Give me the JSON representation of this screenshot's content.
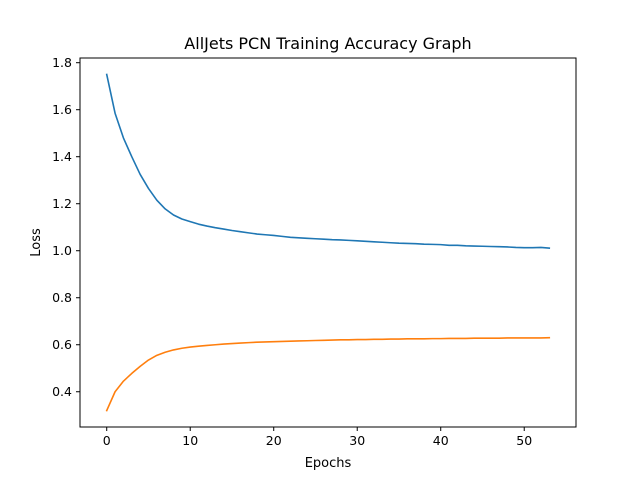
{
  "chart_data": {
    "type": "line",
    "title": "AllJets PCN Training Accuracy Graph",
    "xlabel": "Epochs",
    "ylabel": "Loss",
    "xlim": [
      -3.2,
      56.2
    ],
    "ylim": [
      0.25,
      1.82
    ],
    "xticks": [
      0,
      10,
      20,
      30,
      40,
      50
    ],
    "yticks": [
      0.4,
      0.6,
      0.8,
      1.0,
      1.2,
      1.4,
      1.6,
      1.8
    ],
    "xtick_labels": [
      "0",
      "10",
      "20",
      "30",
      "40",
      "50"
    ],
    "ytick_labels": [
      "0.4",
      "0.6",
      "0.8",
      "1.0",
      "1.2",
      "1.4",
      "1.6",
      "1.8"
    ],
    "grid": false,
    "legend": "none",
    "x": [
      0,
      1,
      2,
      3,
      4,
      5,
      6,
      7,
      8,
      9,
      10,
      11,
      12,
      13,
      14,
      15,
      16,
      17,
      18,
      19,
      20,
      21,
      22,
      23,
      24,
      25,
      26,
      27,
      28,
      29,
      30,
      31,
      32,
      33,
      34,
      35,
      36,
      37,
      38,
      39,
      40,
      41,
      42,
      43,
      44,
      45,
      46,
      47,
      48,
      49,
      50,
      51,
      52,
      53
    ],
    "series": [
      {
        "color": "#1f77b4",
        "values": [
          1.75,
          1.585,
          1.48,
          1.4,
          1.325,
          1.265,
          1.215,
          1.178,
          1.152,
          1.135,
          1.124,
          1.113,
          1.105,
          1.098,
          1.092,
          1.086,
          1.081,
          1.076,
          1.071,
          1.068,
          1.065,
          1.061,
          1.057,
          1.055,
          1.053,
          1.051,
          1.049,
          1.047,
          1.046,
          1.044,
          1.042,
          1.04,
          1.038,
          1.036,
          1.034,
          1.032,
          1.031,
          1.03,
          1.028,
          1.027,
          1.026,
          1.023,
          1.023,
          1.021,
          1.02,
          1.019,
          1.018,
          1.017,
          1.016,
          1.014,
          1.013,
          1.013,
          1.014,
          1.011
        ]
      },
      {
        "color": "#ff7f0e",
        "values": [
          0.32,
          0.4,
          0.445,
          0.478,
          0.508,
          0.535,
          0.555,
          0.568,
          0.578,
          0.585,
          0.59,
          0.594,
          0.597,
          0.6,
          0.603,
          0.605,
          0.607,
          0.609,
          0.611,
          0.612,
          0.613,
          0.614,
          0.615,
          0.616,
          0.617,
          0.618,
          0.619,
          0.62,
          0.621,
          0.621,
          0.622,
          0.622,
          0.623,
          0.623,
          0.624,
          0.624,
          0.625,
          0.625,
          0.625,
          0.626,
          0.626,
          0.627,
          0.627,
          0.627,
          0.628,
          0.628,
          0.628,
          0.628,
          0.629,
          0.629,
          0.629,
          0.629,
          0.629,
          0.63
        ]
      }
    ]
  }
}
